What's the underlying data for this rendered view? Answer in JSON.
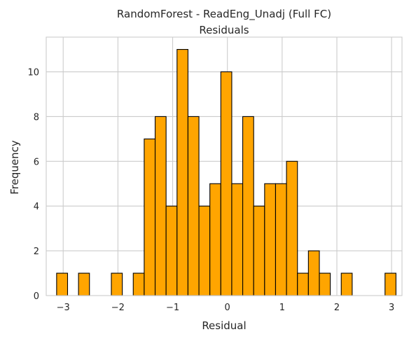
{
  "chart_data": {
    "type": "bar",
    "subtype": "histogram",
    "title": "RandomForest - ReadEng_Unadj (Full FC)",
    "subtitle": "Residuals",
    "xlabel": "Residual",
    "ylabel": "Frequency",
    "xlim": [
      -3.31,
      3.19
    ],
    "ylim": [
      0,
      11.55
    ],
    "xticks": [
      -3,
      -2,
      -1,
      0,
      1,
      2,
      3
    ],
    "yticks": [
      0,
      2,
      4,
      6,
      8,
      10
    ],
    "grid": true,
    "bar_color": "#ffa500",
    "edge_color": "#000000",
    "bin_width": 0.2,
    "bins": [
      {
        "x0": -3.12,
        "count": 1
      },
      {
        "x0": -2.92,
        "count": 0
      },
      {
        "x0": -2.72,
        "count": 1
      },
      {
        "x0": -2.52,
        "count": 0
      },
      {
        "x0": -2.32,
        "count": 0
      },
      {
        "x0": -2.12,
        "count": 1
      },
      {
        "x0": -1.92,
        "count": 0
      },
      {
        "x0": -1.72,
        "count": 1
      },
      {
        "x0": -1.52,
        "count": 7
      },
      {
        "x0": -1.32,
        "count": 8
      },
      {
        "x0": -1.12,
        "count": 4
      },
      {
        "x0": -0.92,
        "count": 11
      },
      {
        "x0": -0.72,
        "count": 8
      },
      {
        "x0": -0.52,
        "count": 4
      },
      {
        "x0": -0.32,
        "count": 5
      },
      {
        "x0": -0.12,
        "count": 10
      },
      {
        "x0": 0.08,
        "count": 5
      },
      {
        "x0": 0.28,
        "count": 8
      },
      {
        "x0": 0.48,
        "count": 4
      },
      {
        "x0": 0.68,
        "count": 5
      },
      {
        "x0": 0.88,
        "count": 5
      },
      {
        "x0": 1.08,
        "count": 6
      },
      {
        "x0": 1.28,
        "count": 1
      },
      {
        "x0": 1.48,
        "count": 2
      },
      {
        "x0": 1.68,
        "count": 1
      },
      {
        "x0": 1.88,
        "count": 0
      },
      {
        "x0": 2.08,
        "count": 1
      },
      {
        "x0": 2.28,
        "count": 0
      },
      {
        "x0": 2.48,
        "count": 0
      },
      {
        "x0": 2.68,
        "count": 0
      },
      {
        "x0": 2.88,
        "count": 1
      }
    ]
  }
}
